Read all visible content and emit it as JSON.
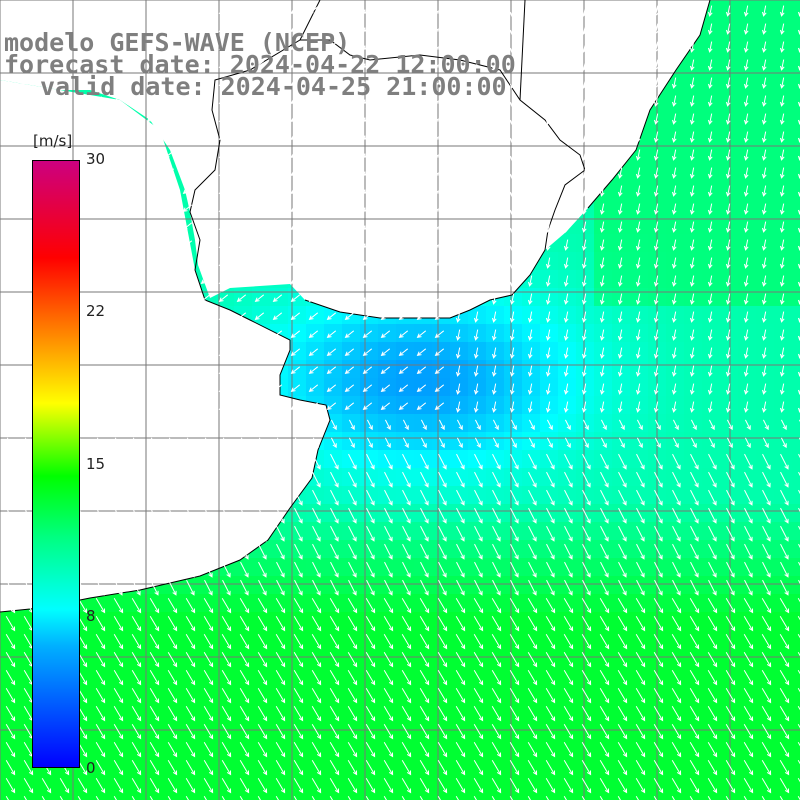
{
  "header": {
    "model_line": "modelo GEFS-WAVE (NCEP)",
    "forecast_line": "forecast date: 2024-04-22 12:00:00",
    "valid_line": "valid date: 2024-04-25 21:00:00"
  },
  "colorbar": {
    "unit": "[m/s]",
    "ticks": [
      "30",
      "22",
      "15",
      "8",
      "0"
    ],
    "range": [
      0,
      30
    ],
    "colors": [
      "#0000ff",
      "#00b0ff",
      "#00ffff",
      "#00ff80",
      "#00ff00",
      "#ffff00",
      "#ff8000",
      "#ff0000",
      "#cc0080"
    ]
  },
  "map": {
    "field": "wind speed with direction arrows",
    "land_color": "#ffffff",
    "grid": true
  }
}
